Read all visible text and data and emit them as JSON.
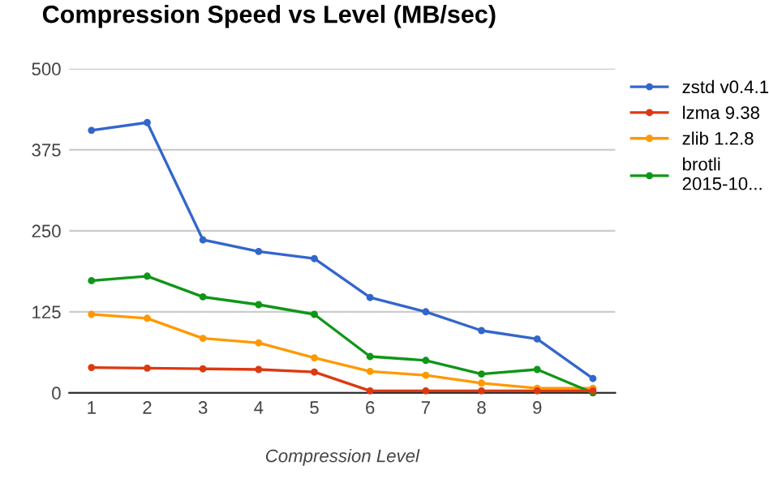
{
  "chart_data": {
    "type": "line",
    "title": "Compression Speed vs Level (MB/sec)",
    "xlabel": "Compression Level",
    "categories": [
      "1",
      "2",
      "3",
      "4",
      "5",
      "6",
      "7",
      "8",
      "9",
      null
    ],
    "series": [
      {
        "name": "zstd v0.4.1",
        "color": "#3366cc",
        "values": [
          405,
          417,
          236,
          218,
          207,
          147,
          125,
          96,
          83,
          22
        ]
      },
      {
        "name": "lzma 9.38",
        "color": "#dc3912",
        "values": [
          39,
          38,
          37,
          36,
          32,
          3,
          3,
          3,
          3,
          3
        ]
      },
      {
        "name": "zlib 1.2.8",
        "color": "#ff9900",
        "values": [
          121,
          115,
          84,
          77,
          54,
          33,
          27,
          15,
          7,
          7
        ]
      },
      {
        "name": "brotli 2015-10...",
        "color": "#109618",
        "values": [
          173,
          180,
          148,
          136,
          121,
          56,
          50,
          29,
          36,
          0
        ]
      }
    ],
    "ylim": [
      0,
      500
    ],
    "yticks": [
      0,
      125,
      250,
      375,
      500
    ],
    "grid": "y",
    "legend": "top right",
    "marker": "circle",
    "line_style": "solid"
  }
}
